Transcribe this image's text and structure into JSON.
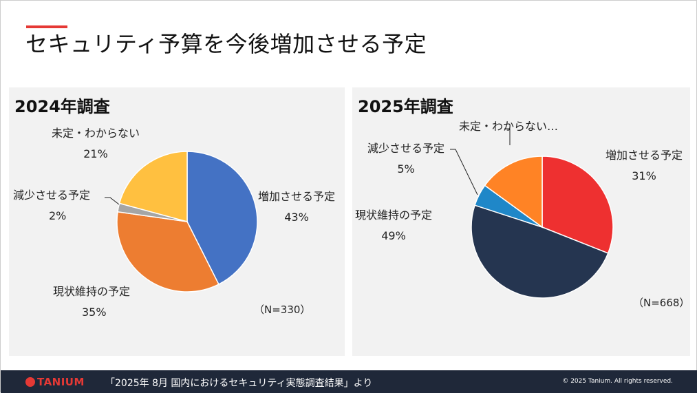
{
  "title": "セキュリティ予算を今後増加させる予定",
  "footer": {
    "logo": "TANIUM",
    "source": "「2025年 8月 国内におけるセキュリティ実態調査結果」より",
    "copyright": "© 2025 Tanium. All rights reserved."
  },
  "chart_data": [
    {
      "type": "pie",
      "title": "2024年調査",
      "note": "（N=330）",
      "categories": [
        "増加させる予定",
        "現状維持の予定",
        "減少させる予定",
        "未定・わからない"
      ],
      "values": [
        43,
        35,
        2,
        21
      ],
      "value_labels": [
        "43%",
        "35%",
        "2%",
        "21%"
      ],
      "colors": [
        "#4472c4",
        "#ed7d31",
        "#a5a5a5",
        "#ffc040"
      ]
    },
    {
      "type": "pie",
      "title": "2025年調査",
      "note": "（N=668）",
      "categories": [
        "増加させる予定",
        "現状維持の予定",
        "減少させる予定",
        "未定・わからない…"
      ],
      "values": [
        31,
        49,
        5,
        15
      ],
      "value_labels": [
        "31%",
        "49%",
        "5%",
        ""
      ],
      "colors": [
        "#ee3030",
        "#253550",
        "#1f87c8",
        "#ff8325"
      ]
    }
  ]
}
